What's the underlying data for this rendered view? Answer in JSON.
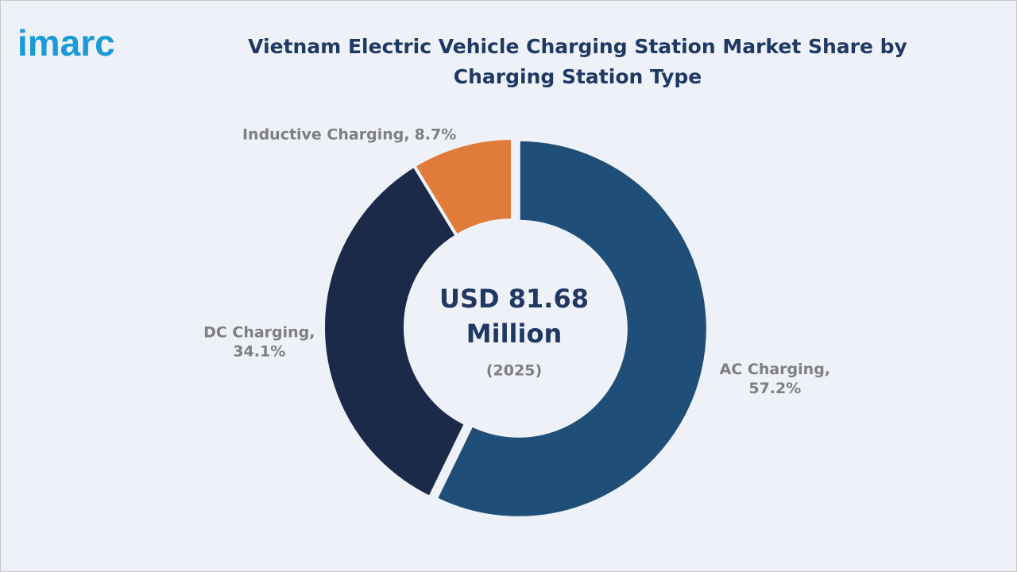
{
  "logo": "imarc",
  "chart_data": {
    "type": "pie",
    "title": "Vietnam Electric Vehicle Charging Station Market Share by Charging Station Type",
    "categories": [
      "AC Charging",
      "DC Charging",
      "Inductive Charging"
    ],
    "values": [
      57.2,
      34.1,
      8.7
    ],
    "value_labels": [
      "57.2%",
      "34.1%",
      "8.7%"
    ],
    "label_separator": ",",
    "colors": [
      "#1f4e79",
      "#1c2a4a",
      "#e07b39"
    ],
    "center_text": [
      "USD 81.68",
      "Million"
    ],
    "center_subtext": "(2025)"
  }
}
